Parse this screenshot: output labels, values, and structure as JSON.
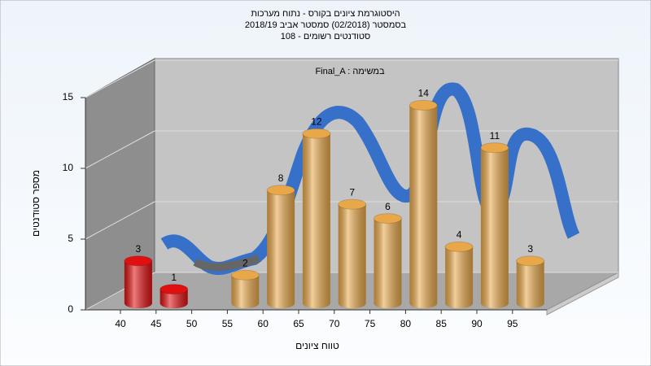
{
  "chart_data": {
    "type": "bar",
    "title_lines": [
      "היסטוגרמת ציונים בקורס - נתוח מערכות",
      "בסמסטר  (02/2018)  סמסטר אביב 2018/19",
      "סטודנטים רשומים - 108"
    ],
    "annotation": "Final_A : במשימה",
    "x_label": "טווח ציונים",
    "y_label": "מספר סטודנטים",
    "categories": [
      "40",
      "45",
      "50",
      "55",
      "60",
      "65",
      "70",
      "75",
      "80",
      "85",
      "90",
      "95"
    ],
    "values": [
      3,
      1,
      null,
      2,
      8,
      12,
      7,
      6,
      14,
      4,
      11,
      3
    ],
    "colors": [
      "#e01010",
      "#e01010",
      null,
      "#e8a84a",
      "#e8a84a",
      "#e8a84a",
      "#e8a84a",
      "#e8a84a",
      "#e8a84a",
      "#e8a84a",
      "#e8a84a",
      "#e8a84a"
    ],
    "ylim": [
      0,
      15
    ],
    "yticks": [
      0,
      5,
      10,
      15
    ],
    "grid": true
  }
}
